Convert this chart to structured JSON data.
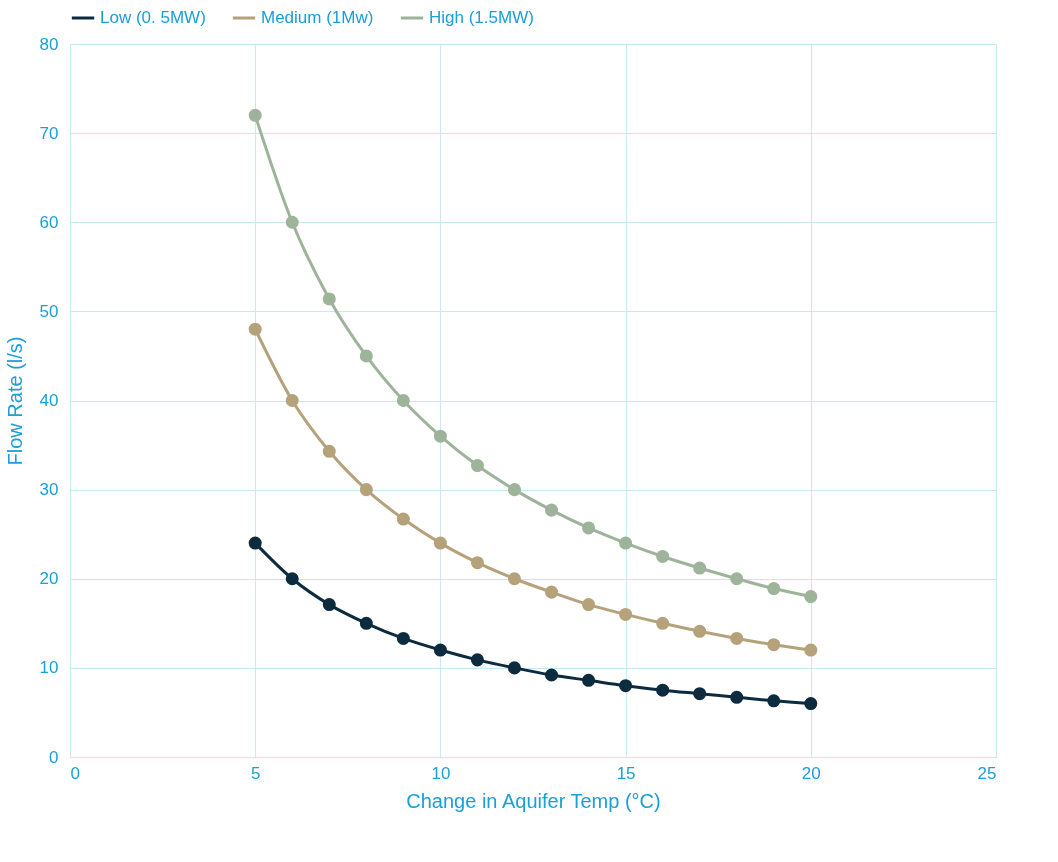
{
  "chart_data": {
    "type": "line",
    "xlabel": "Change in Aquifer Temp (°C)",
    "ylabel": "Flow Rate (l/s)",
    "x": [
      5,
      6,
      7,
      8,
      9,
      10,
      11,
      12,
      13,
      14,
      15,
      16,
      17,
      18,
      19,
      20
    ],
    "series": [
      {
        "name": "Low (0. 5MW)",
        "color": "#0d2b3e",
        "values": [
          24,
          20,
          17.1,
          15,
          13.3,
          12,
          10.9,
          10,
          9.2,
          8.6,
          8,
          7.5,
          7.1,
          6.7,
          6.3,
          6
        ]
      },
      {
        "name": "Medium (1Mw)",
        "color": "#b5a27a",
        "values": [
          48,
          40,
          34.3,
          30,
          26.7,
          24,
          21.8,
          20,
          18.5,
          17.1,
          16,
          15,
          14.1,
          13.3,
          12.6,
          12
        ]
      },
      {
        "name": "High (1.5MW)",
        "color": "#9db49a",
        "values": [
          72,
          60,
          51.4,
          45,
          40,
          36,
          32.7,
          30,
          27.7,
          25.7,
          24,
          22.5,
          21.2,
          20,
          18.9,
          18
        ]
      }
    ],
    "xlim": [
      0,
      25
    ],
    "xticks": [
      0,
      5,
      10,
      15,
      20,
      25
    ],
    "ylim": [
      0,
      80
    ],
    "yticks": [
      0,
      10,
      20,
      30,
      40,
      50,
      60,
      70,
      80
    ],
    "grid": true,
    "legend": "top",
    "marker": "circle",
    "line_style": "solid"
  }
}
